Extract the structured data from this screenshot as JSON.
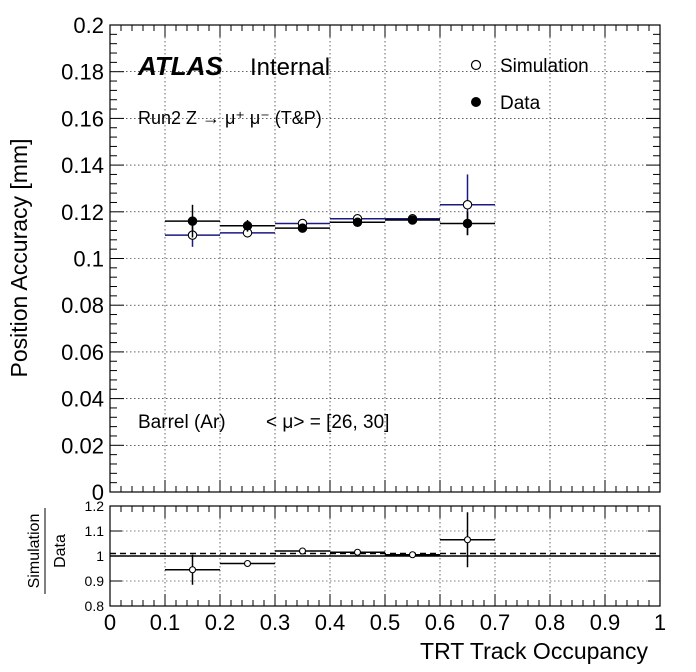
{
  "chart_data": [
    {
      "type": "scatter",
      "ylabel": "Position Accuracy [mm]",
      "xlim": [
        0,
        1
      ],
      "ylim": [
        0,
        0.2
      ],
      "grid": true,
      "legend_placement": "top-right",
      "yticks": [
        "0",
        "0.02",
        "0.04",
        "0.06",
        "0.08",
        "0.1",
        "0.12",
        "0.14",
        "0.16",
        "0.18",
        "0.2"
      ],
      "ytick_values": [
        0,
        0.02,
        0.04,
        0.06,
        0.08,
        0.1,
        0.12,
        0.14,
        0.16,
        0.18,
        0.2
      ],
      "annotations": {
        "atlas": "ATLAS",
        "internal": "Internal",
        "process": "Run2 Z → μ⁺ μ⁻ (T&P)",
        "region": "Barrel (Ar)",
        "pileup": "< μ> = [26, 30]"
      },
      "series": [
        {
          "name": "Simulation",
          "marker": "open-circle",
          "color": "#1a1a80",
          "x": [
            0.15,
            0.25,
            0.35,
            0.45,
            0.55,
            0.65
          ],
          "xerr": [
            0.05,
            0.05,
            0.05,
            0.05,
            0.05,
            0.05
          ],
          "y": [
            0.11,
            0.111,
            0.115,
            0.117,
            0.117,
            0.123
          ],
          "yerr": [
            0.005,
            0.002,
            0.0015,
            0.0015,
            0.0015,
            0.013
          ]
        },
        {
          "name": "Data",
          "marker": "filled-circle",
          "color": "#000000",
          "x": [
            0.15,
            0.25,
            0.35,
            0.45,
            0.55,
            0.65
          ],
          "xerr": [
            0.05,
            0.05,
            0.05,
            0.05,
            0.05,
            0.05
          ],
          "y": [
            0.116,
            0.114,
            0.113,
            0.1155,
            0.1165,
            0.115
          ],
          "yerr": [
            0.007,
            0.0025,
            0.0015,
            0.0015,
            0.0015,
            0.005
          ]
        }
      ]
    },
    {
      "type": "scatter",
      "ylabel_num": "Simulation",
      "ylabel_den": "Data",
      "xlabel": "TRT Track Occupancy",
      "xlim": [
        0,
        1
      ],
      "ylim": [
        0.8,
        1.2
      ],
      "grid": true,
      "reference_lines": [
        1.0,
        1.01
      ],
      "xticks": [
        "0",
        "0.1",
        "0.2",
        "0.3",
        "0.4",
        "0.5",
        "0.6",
        "0.7",
        "0.8",
        "0.9",
        "1"
      ],
      "xtick_values": [
        0,
        0.1,
        0.2,
        0.3,
        0.4,
        0.5,
        0.6,
        0.7,
        0.8,
        0.9,
        1.0
      ],
      "yticks": [
        "0.8",
        "0.9",
        "1",
        "1.1",
        "1.2"
      ],
      "ytick_values": [
        0.8,
        0.9,
        1.0,
        1.1,
        1.2
      ],
      "series": [
        {
          "name": "Simulation / Data",
          "marker": "open-circle",
          "color": "#000000",
          "x": [
            0.15,
            0.25,
            0.35,
            0.45,
            0.55,
            0.65
          ],
          "xerr": [
            0.05,
            0.05,
            0.05,
            0.05,
            0.05,
            0.05
          ],
          "y": [
            0.945,
            0.97,
            1.02,
            1.015,
            1.005,
            1.065
          ],
          "yerr": [
            0.06,
            0.01,
            0.005,
            0.005,
            0.005,
            0.11
          ]
        }
      ]
    }
  ]
}
